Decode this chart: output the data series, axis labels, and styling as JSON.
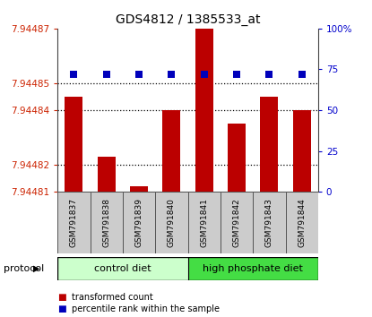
{
  "title": "GDS4812 / 1385533_at",
  "samples": [
    "GSM791837",
    "GSM791838",
    "GSM791839",
    "GSM791840",
    "GSM791841",
    "GSM791842",
    "GSM791843",
    "GSM791844"
  ],
  "transformed_counts": [
    7.944845,
    7.944823,
    7.944812,
    7.94484,
    7.944872,
    7.944835,
    7.944845,
    7.94484
  ],
  "percentile_ranks": [
    72,
    72,
    72,
    72,
    72,
    72,
    72,
    72
  ],
  "y_min": 7.94481,
  "y_max": 7.94487,
  "y_ticks": [
    7.94481,
    7.94482,
    7.94484,
    7.94485,
    7.94487
  ],
  "y_tick_labels": [
    "7.94481",
    "7.94482",
    "7.94484",
    "7.94485",
    "7.94487"
  ],
  "right_y_ticks": [
    0,
    25,
    50,
    75,
    100
  ],
  "right_y_labels": [
    "0",
    "25",
    "50",
    "75",
    "100%"
  ],
  "bar_color": "#bb0000",
  "dot_color": "#0000bb",
  "left_tick_color": "#cc2200",
  "right_tick_color": "#0000cc",
  "protocol_groups": [
    {
      "label": "control diet",
      "start": 0,
      "end": 4,
      "color": "#ccffcc"
    },
    {
      "label": "high phosphate diet",
      "start": 4,
      "end": 8,
      "color": "#44dd44"
    }
  ],
  "protocol_label": "protocol",
  "legend_items": [
    {
      "color": "#bb0000",
      "label": "transformed count"
    },
    {
      "color": "#0000bb",
      "label": "percentile rank within the sample"
    }
  ],
  "background_color": "#ffffff",
  "bar_width": 0.55,
  "dot_size": 28
}
